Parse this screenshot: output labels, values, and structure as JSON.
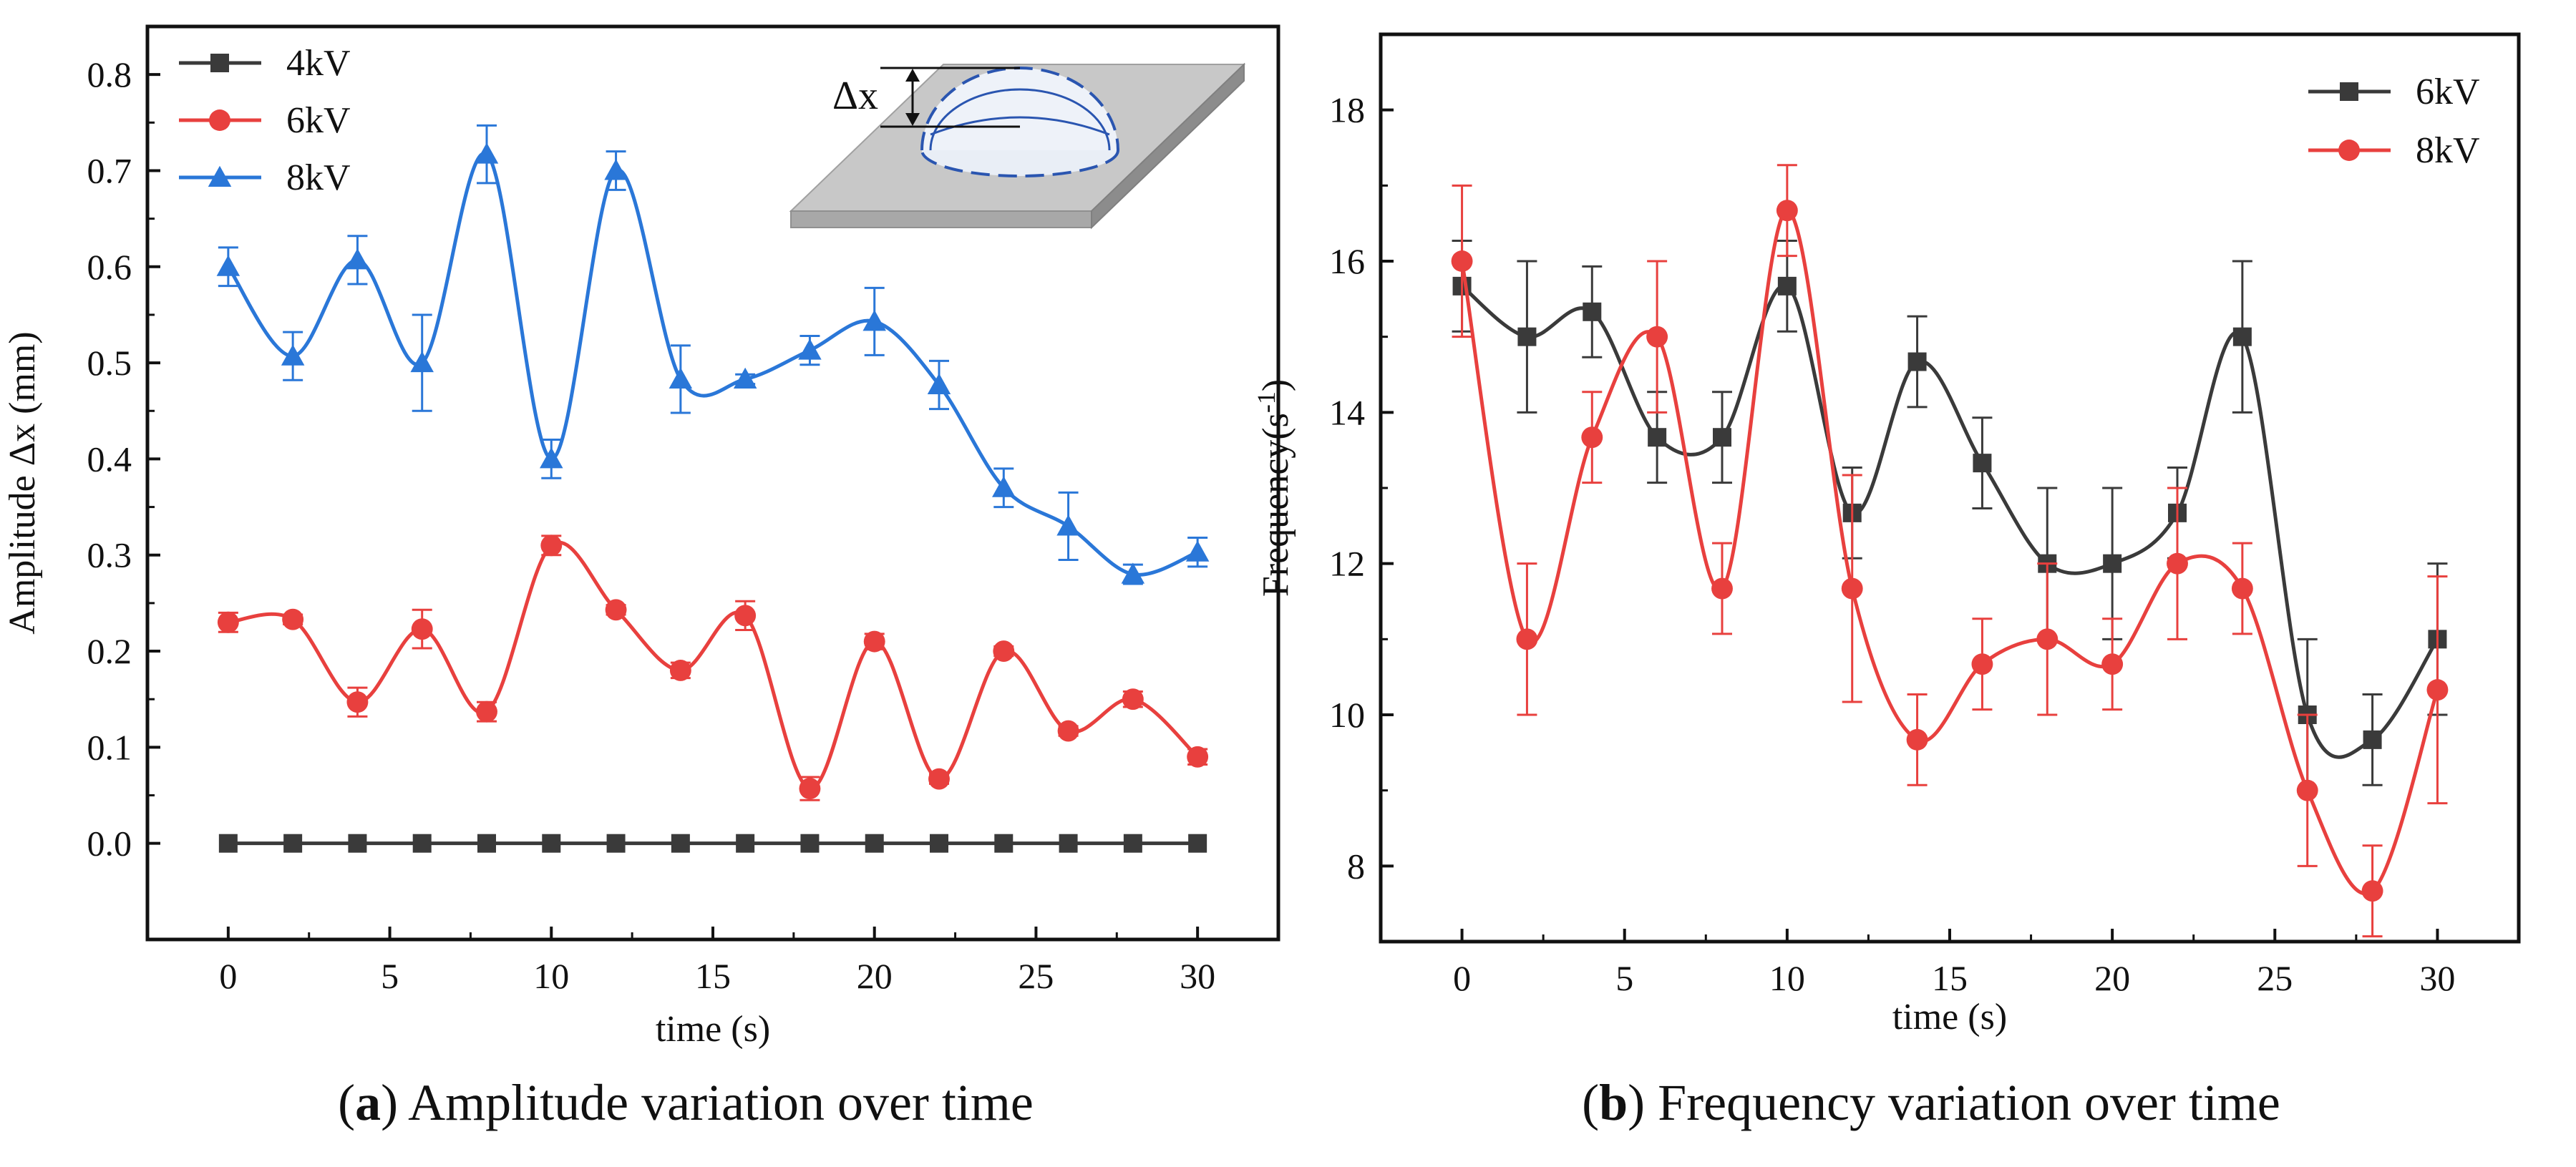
{
  "chart_data": [
    {
      "type": "line",
      "marker_style": "points with error bars, smooth spline",
      "xlabel": "time (s)",
      "ylabel": "Amplitude Δx (mm)",
      "xlim": [
        -2.5,
        32.5
      ],
      "ylim": [
        -0.1,
        0.85
      ],
      "xticks": [
        0,
        5,
        10,
        15,
        20,
        25,
        30
      ],
      "yticks": [
        0.0,
        0.1,
        0.2,
        0.3,
        0.4,
        0.5,
        0.6,
        0.7,
        0.8
      ],
      "ytick_labels": [
        "0.0",
        "0.1",
        "0.2",
        "0.3",
        "0.4",
        "0.5",
        "0.6",
        "0.7",
        "0.8"
      ],
      "grid": false,
      "legend_position": "top-left",
      "x": [
        0,
        2,
        4,
        6,
        8,
        10,
        12,
        14,
        16,
        18,
        20,
        22,
        24,
        26,
        28,
        30
      ],
      "series": [
        {
          "name": "4kV",
          "color": "#3a3a3a",
          "marker": "square",
          "values": [
            0,
            0,
            0,
            0,
            0,
            0,
            0,
            0,
            0,
            0,
            0,
            0,
            0,
            0,
            0,
            0
          ],
          "errors": [
            0,
            0,
            0,
            0,
            0,
            0,
            0,
            0,
            0,
            0,
            0,
            0,
            0,
            0,
            0,
            0
          ]
        },
        {
          "name": "6kV",
          "color": "#e8403e",
          "marker": "circle",
          "values": [
            0.23,
            0.233,
            0.147,
            0.223,
            0.137,
            0.31,
            0.243,
            0.18,
            0.237,
            0.057,
            0.21,
            0.067,
            0.2,
            0.117,
            0.15,
            0.09
          ],
          "errors": [
            0.01,
            0.005,
            0.015,
            0.02,
            0.01,
            0.01,
            0.005,
            0.008,
            0.015,
            0.012,
            0.008,
            0.005,
            0.005,
            0.005,
            0.008,
            0.008
          ]
        },
        {
          "name": "8kV",
          "color": "#2a77d8",
          "marker": "triangle",
          "values": [
            0.6,
            0.507,
            0.607,
            0.5,
            0.717,
            0.4,
            0.7,
            0.483,
            0.483,
            0.513,
            0.543,
            0.477,
            0.37,
            0.33,
            0.28,
            0.303
          ],
          "errors": [
            0.02,
            0.025,
            0.025,
            0.05,
            0.03,
            0.02,
            0.02,
            0.035,
            0.005,
            0.015,
            0.035,
            0.025,
            0.02,
            0.035,
            0.01,
            0.015
          ]
        }
      ],
      "inset_label": "Δx"
    },
    {
      "type": "line",
      "marker_style": "points with error bars, smooth spline",
      "xlabel": "time (s)",
      "ylabel_main": "Frequency(s",
      "ylabel_sup": "-1",
      "ylabel_tail": ")",
      "xlim": [
        -2.5,
        32.5
      ],
      "ylim": [
        7,
        19
      ],
      "xticks": [
        0,
        5,
        10,
        15,
        20,
        25,
        30
      ],
      "yticks": [
        8,
        10,
        12,
        14,
        16,
        18
      ],
      "grid": false,
      "legend_position": "top-right",
      "x": [
        0,
        2,
        4,
        6,
        8,
        10,
        12,
        14,
        16,
        18,
        20,
        22,
        24,
        26,
        28,
        30
      ],
      "series": [
        {
          "name": "6kV",
          "color": "#3a3a3a",
          "marker": "square",
          "values": [
            15.67,
            15.0,
            15.33,
            13.67,
            13.67,
            15.67,
            12.67,
            14.67,
            13.33,
            12.0,
            12.0,
            12.67,
            15.0,
            10.0,
            9.67,
            11.0
          ],
          "errors": [
            0.6,
            1.0,
            0.6,
            0.6,
            0.6,
            0.6,
            0.6,
            0.6,
            0.6,
            1.0,
            1.0,
            0.6,
            1.0,
            1.0,
            0.6,
            1.0
          ]
        },
        {
          "name": "8kV",
          "color": "#e8403e",
          "marker": "circle",
          "values": [
            16.0,
            11.0,
            13.67,
            15.0,
            11.67,
            16.67,
            11.67,
            9.67,
            10.67,
            11.0,
            10.67,
            12.0,
            11.67,
            9.0,
            7.67,
            10.33
          ],
          "errors": [
            1.0,
            1.0,
            0.6,
            1.0,
            0.6,
            0.6,
            1.5,
            0.6,
            0.6,
            1.0,
            0.6,
            1.0,
            0.6,
            1.0,
            0.6,
            1.5
          ]
        }
      ]
    }
  ],
  "captions": [
    {
      "letter": "a",
      "text": " Amplitude variation over time"
    },
    {
      "letter": "b",
      "text": " Frequency variation over time"
    }
  ]
}
